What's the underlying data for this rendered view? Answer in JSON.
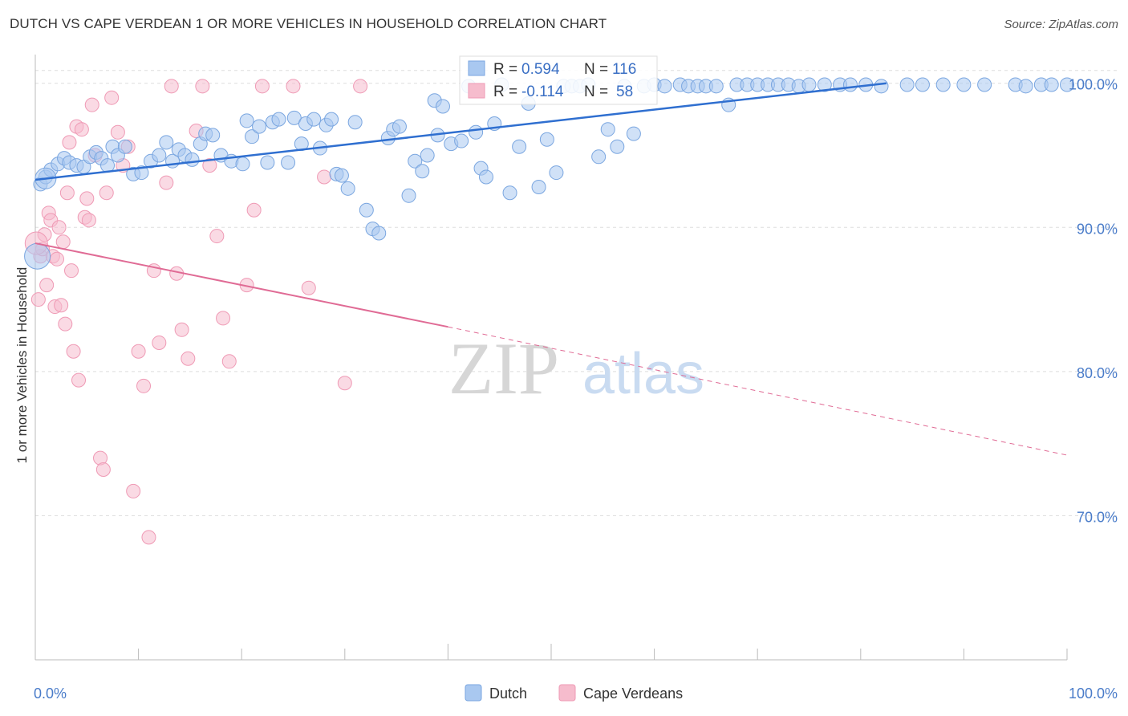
{
  "title": "DUTCH VS CAPE VERDEAN 1 OR MORE VEHICLES IN HOUSEHOLD CORRELATION CHART",
  "source": "Source: ZipAtlas.com",
  "watermark": {
    "zip": "ZIP",
    "atlas": "atlas"
  },
  "colors": {
    "dutch_fill": "#a9c8f0",
    "dutch_stroke": "#7aa6e0",
    "dutch_line": "#2f6fd0",
    "cape_fill": "#f6bccd",
    "cape_stroke": "#ef9ab5",
    "cape_line": "#e06b95",
    "grid": "#dddddd",
    "tick": "#4a7cc9"
  },
  "stats": [
    {
      "r_label": "R =",
      "r_value": "0.594",
      "n_label": "N =",
      "n_value": "116"
    },
    {
      "r_label": "R =",
      "r_value": "-0.114",
      "n_label": "N =",
      "n_value": "58"
    }
  ],
  "chart_data": {
    "type": "scatter",
    "title": "DUTCH VS CAPE VERDEAN 1 OR MORE VEHICLES IN HOUSEHOLD CORRELATION CHART",
    "xlabel": "",
    "ylabel": "1 or more Vehicles in Household",
    "xlim": [
      0,
      100
    ],
    "ylim": [
      60,
      101.6
    ],
    "x_tick_labels": [
      "0.0%",
      "100.0%"
    ],
    "y_ticks": [
      70,
      80,
      90,
      100
    ],
    "y_tick_labels": [
      "70.0%",
      "80.0%",
      "90.0%",
      "100.0%"
    ],
    "grid": true,
    "legend_position": "bottom-center",
    "series": [
      {
        "name": "Dutch",
        "trend": {
          "x": [
            0,
            82.5
          ],
          "y": [
            93.3,
            100.0
          ]
        },
        "points": [
          [
            0.5,
            93.0
          ],
          [
            1.0,
            93.5
          ],
          [
            1.5,
            94.0
          ],
          [
            2.2,
            94.4
          ],
          [
            2.8,
            94.8
          ],
          [
            3.3,
            94.5
          ],
          [
            4.0,
            94.3
          ],
          [
            4.7,
            94.2
          ],
          [
            5.3,
            94.9
          ],
          [
            5.9,
            95.2
          ],
          [
            6.4,
            94.8
          ],
          [
            7.0,
            94.3
          ],
          [
            7.5,
            95.6
          ],
          [
            8.0,
            95.0
          ],
          [
            8.7,
            95.6
          ],
          [
            9.5,
            93.7
          ],
          [
            10.3,
            93.8
          ],
          [
            11.2,
            94.6
          ],
          [
            12.0,
            95.0
          ],
          [
            12.7,
            95.9
          ],
          [
            13.3,
            94.6
          ],
          [
            13.9,
            95.4
          ],
          [
            14.5,
            95.0
          ],
          [
            15.2,
            94.7
          ],
          [
            16.0,
            95.8
          ],
          [
            16.5,
            96.5
          ],
          [
            17.2,
            96.4
          ],
          [
            18.0,
            95.0
          ],
          [
            19.0,
            94.6
          ],
          [
            20.1,
            94.4
          ],
          [
            20.5,
            97.4
          ],
          [
            21.0,
            96.3
          ],
          [
            21.7,
            97.0
          ],
          [
            22.5,
            94.5
          ],
          [
            23.0,
            97.3
          ],
          [
            23.6,
            97.5
          ],
          [
            24.5,
            94.5
          ],
          [
            25.1,
            97.6
          ],
          [
            25.8,
            95.8
          ],
          [
            26.2,
            97.2
          ],
          [
            27.0,
            97.5
          ],
          [
            27.6,
            95.5
          ],
          [
            28.2,
            97.1
          ],
          [
            28.7,
            97.5
          ],
          [
            29.2,
            93.7
          ],
          [
            29.7,
            93.6
          ],
          [
            30.3,
            92.7
          ],
          [
            31.0,
            97.3
          ],
          [
            32.1,
            91.2
          ],
          [
            32.7,
            89.9
          ],
          [
            33.3,
            89.6
          ],
          [
            34.2,
            96.2
          ],
          [
            34.7,
            96.8
          ],
          [
            35.3,
            97.0
          ],
          [
            36.2,
            92.2
          ],
          [
            36.8,
            94.6
          ],
          [
            37.5,
            93.9
          ],
          [
            38.0,
            95.0
          ],
          [
            38.7,
            98.8
          ],
          [
            39.0,
            96.4
          ],
          [
            39.5,
            98.4
          ],
          [
            40.3,
            95.8
          ],
          [
            41.3,
            96.0
          ],
          [
            42.0,
            99.8
          ],
          [
            42.7,
            96.6
          ],
          [
            43.2,
            94.1
          ],
          [
            43.7,
            93.5
          ],
          [
            44.5,
            97.2
          ],
          [
            45.2,
            99.9
          ],
          [
            46.0,
            92.4
          ],
          [
            46.9,
            95.6
          ],
          [
            47.8,
            98.6
          ],
          [
            48.8,
            92.8
          ],
          [
            49.6,
            96.1
          ],
          [
            50.5,
            93.8
          ],
          [
            51.2,
            99.8
          ],
          [
            52.0,
            99.8
          ],
          [
            52.8,
            99.8
          ],
          [
            53.6,
            99.9
          ],
          [
            54.6,
            94.9
          ],
          [
            55.5,
            96.8
          ],
          [
            56.4,
            95.6
          ],
          [
            57.1,
            99.8
          ],
          [
            58.0,
            96.5
          ],
          [
            59.0,
            99.8
          ],
          [
            60.0,
            99.9
          ],
          [
            61.0,
            99.8
          ],
          [
            62.5,
            99.9
          ],
          [
            63.3,
            99.8
          ],
          [
            64.2,
            99.8
          ],
          [
            65.0,
            99.8
          ],
          [
            66.0,
            99.8
          ],
          [
            67.2,
            98.5
          ],
          [
            68.0,
            99.9
          ],
          [
            69.0,
            99.9
          ],
          [
            70.0,
            99.9
          ],
          [
            71.0,
            99.9
          ],
          [
            72.0,
            99.9
          ],
          [
            73.0,
            99.9
          ],
          [
            74.0,
            99.8
          ],
          [
            75.0,
            99.9
          ],
          [
            76.5,
            99.9
          ],
          [
            78.0,
            99.9
          ],
          [
            79.0,
            99.9
          ],
          [
            80.5,
            99.9
          ],
          [
            82.0,
            99.8
          ],
          [
            84.5,
            99.9
          ],
          [
            86.0,
            99.9
          ],
          [
            88.0,
            99.9
          ],
          [
            90.0,
            99.9
          ],
          [
            92.0,
            99.9
          ],
          [
            95.0,
            99.9
          ],
          [
            96.0,
            99.8
          ],
          [
            97.5,
            99.9
          ],
          [
            98.5,
            99.9
          ],
          [
            100.0,
            99.9
          ]
        ]
      },
      {
        "name": "Cape Verdeans",
        "trend": {
          "x": [
            0,
            40.0
          ],
          "y": [
            88.9,
            83.1
          ]
        },
        "trend_dashed": {
          "x": [
            40.0,
            100.0
          ],
          "y": [
            83.1,
            74.2
          ]
        },
        "points": [
          [
            0.3,
            85.0
          ],
          [
            0.5,
            88.0
          ],
          [
            0.7,
            88.5
          ],
          [
            0.9,
            89.5
          ],
          [
            1.1,
            86.0
          ],
          [
            1.3,
            91.0
          ],
          [
            1.5,
            90.5
          ],
          [
            1.7,
            88.0
          ],
          [
            1.9,
            84.5
          ],
          [
            2.1,
            87.8
          ],
          [
            2.3,
            90.0
          ],
          [
            2.5,
            84.6
          ],
          [
            2.7,
            89.0
          ],
          [
            2.9,
            83.3
          ],
          [
            3.1,
            92.4
          ],
          [
            3.3,
            95.9
          ],
          [
            3.5,
            87.0
          ],
          [
            3.7,
            81.4
          ],
          [
            4.0,
            97.0
          ],
          [
            4.2,
            79.4
          ],
          [
            4.5,
            96.8
          ],
          [
            4.8,
            90.7
          ],
          [
            5.0,
            92.0
          ],
          [
            5.2,
            90.5
          ],
          [
            5.5,
            98.5
          ],
          [
            5.8,
            95.0
          ],
          [
            6.3,
            74.0
          ],
          [
            6.6,
            73.2
          ],
          [
            6.9,
            92.4
          ],
          [
            7.4,
            99.0
          ],
          [
            8.0,
            96.6
          ],
          [
            8.5,
            94.3
          ],
          [
            9.0,
            95.6
          ],
          [
            9.5,
            71.7
          ],
          [
            10.0,
            81.4
          ],
          [
            10.5,
            79.0
          ],
          [
            11.0,
            68.5
          ],
          [
            11.5,
            87.0
          ],
          [
            12.0,
            82.0
          ],
          [
            12.7,
            93.1
          ],
          [
            13.2,
            99.8
          ],
          [
            13.7,
            86.8
          ],
          [
            14.2,
            82.9
          ],
          [
            14.8,
            80.9
          ],
          [
            15.6,
            96.7
          ],
          [
            16.2,
            99.8
          ],
          [
            16.9,
            94.3
          ],
          [
            17.6,
            89.4
          ],
          [
            18.2,
            83.7
          ],
          [
            18.8,
            80.7
          ],
          [
            20.5,
            86.0
          ],
          [
            21.2,
            91.2
          ],
          [
            22.0,
            99.8
          ],
          [
            25.0,
            99.8
          ],
          [
            26.5,
            85.8
          ],
          [
            28.0,
            93.5
          ],
          [
            30.0,
            79.2
          ],
          [
            31.5,
            99.8
          ]
        ]
      }
    ]
  },
  "legend": [
    {
      "label": "Dutch"
    },
    {
      "label": "Cape Verdeans"
    }
  ],
  "y_axis_label": "1 or more Vehicles in Household"
}
